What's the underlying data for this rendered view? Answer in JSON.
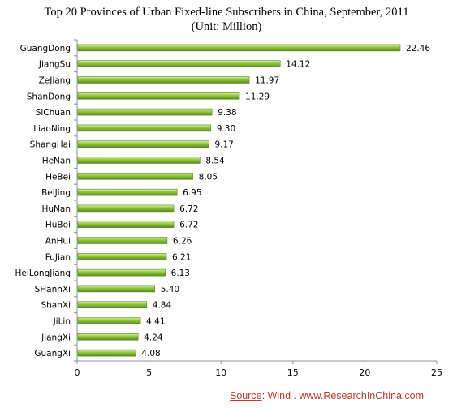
{
  "chart_data": {
    "type": "bar",
    "orientation": "horizontal",
    "title": "Top 20 Provinces of Urban Fixed-line Subscribers in China, September, 2011",
    "subtitle": "(Unit: Million)",
    "categories": [
      "GuangDong",
      "JiangSu",
      "ZeJiang",
      "ShanDong",
      "SiChuan",
      "LiaoNing",
      "ShangHai",
      "HeNan",
      "HeBei",
      "BeiJing",
      "HuNan",
      "HuBei",
      "AnHui",
      "FuJian",
      "HeiLongJiang",
      "SHannXi",
      "ShanXi",
      "JiLin",
      "JiangXi",
      "GuangXi"
    ],
    "values": [
      22.46,
      14.12,
      11.97,
      11.29,
      9.38,
      9.3,
      9.17,
      8.54,
      8.05,
      6.95,
      6.72,
      6.72,
      6.26,
      6.21,
      6.13,
      5.4,
      4.84,
      4.41,
      4.24,
      4.08
    ],
    "value_labels": [
      "22.46",
      "14.12",
      "11.97",
      "11.29",
      "9.38",
      "9.30",
      "9.17",
      "8.54",
      "8.05",
      "6.95",
      "6.72",
      "6.72",
      "6.26",
      "6.21",
      "6.13",
      "5.40",
      "4.84",
      "4.41",
      "4.24",
      "4.08"
    ],
    "x_ticks": [
      "0",
      "5",
      "10",
      "15",
      "20",
      "25"
    ],
    "xlim": [
      0,
      25
    ],
    "xlabel": "",
    "ylabel": "",
    "grid": false,
    "legend": "none",
    "bar_color": "#8dc63f",
    "bar_highlight": "#d6ef9a",
    "bar_shadow": "#5b8a1e"
  },
  "source": {
    "label": "Source",
    "text": ":   Wind . www.ResearchInChina.com"
  }
}
